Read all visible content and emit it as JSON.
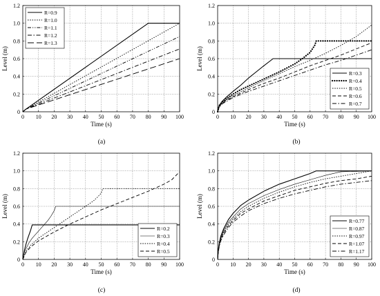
{
  "chart_data": [
    {
      "panel": "(a)",
      "type": "line",
      "xlabel": "Time (s)",
      "ylabel": "Level (m)",
      "xlim": [
        0,
        100
      ],
      "ylim": [
        0,
        1.2
      ],
      "xticks": [
        0,
        10,
        20,
        30,
        40,
        50,
        60,
        70,
        80,
        90,
        100
      ],
      "yticks": [
        0,
        0.2,
        0.4,
        0.6,
        0.8,
        1.0,
        1.2
      ],
      "grid": true,
      "legend_position": "top-left",
      "series": [
        {
          "name": "R=0.9",
          "style": "solid",
          "x": [
            0,
            2,
            80,
            100
          ],
          "y": [
            0,
            0.03,
            1.0,
            1.0
          ]
        },
        {
          "name": "R=1.0",
          "style": "dotted",
          "x": [
            0,
            2,
            100
          ],
          "y": [
            0,
            0.03,
            1.0
          ]
        },
        {
          "name": "R=1.1",
          "style": "dashdotdot",
          "x": [
            0,
            2,
            100
          ],
          "y": [
            0,
            0.03,
            0.85
          ]
        },
        {
          "name": "R=1.2",
          "style": "dashdot",
          "x": [
            0,
            2,
            100
          ],
          "y": [
            0,
            0.03,
            0.71
          ]
        },
        {
          "name": "R=1.3",
          "style": "longdash",
          "x": [
            0,
            2,
            100
          ],
          "y": [
            0,
            0.03,
            0.6
          ]
        }
      ]
    },
    {
      "panel": "(b)",
      "type": "line",
      "xlabel": "Time (s)",
      "ylabel": "Level (m)",
      "xlim": [
        0,
        100
      ],
      "ylim": [
        0,
        1.2
      ],
      "xticks": [
        0,
        10,
        20,
        30,
        40,
        50,
        60,
        70,
        80,
        90,
        100
      ],
      "yticks": [
        0,
        0.2,
        0.4,
        0.6,
        0.8,
        1.0,
        1.2
      ],
      "grid": true,
      "legend_position": "bottom-right",
      "series": [
        {
          "name": "R=0.3",
          "style": "solid",
          "x": [
            0,
            1,
            3,
            6,
            10,
            15,
            20,
            25,
            30,
            36,
            100
          ],
          "y": [
            0,
            0.07,
            0.12,
            0.17,
            0.23,
            0.3,
            0.38,
            0.45,
            0.52,
            0.6,
            0.6
          ]
        },
        {
          "name": "R=0.4",
          "style": "bold-dotted",
          "x": [
            0,
            1,
            3,
            6,
            10,
            15,
            20,
            30,
            40,
            50,
            55,
            60,
            63,
            64,
            100
          ],
          "y": [
            0,
            0.07,
            0.11,
            0.15,
            0.2,
            0.25,
            0.29,
            0.37,
            0.45,
            0.54,
            0.6,
            0.67,
            0.75,
            0.8,
            0.8
          ]
        },
        {
          "name": "R=0.5",
          "style": "dotted",
          "x": [
            0,
            1,
            3,
            6,
            10,
            20,
            30,
            40,
            50,
            60,
            70,
            80,
            90,
            100
          ],
          "y": [
            0,
            0.06,
            0.1,
            0.14,
            0.18,
            0.27,
            0.35,
            0.43,
            0.51,
            0.58,
            0.66,
            0.75,
            0.85,
            0.98
          ]
        },
        {
          "name": "R=0.6",
          "style": "dashed",
          "x": [
            0,
            1,
            3,
            6,
            10,
            20,
            30,
            40,
            50,
            60,
            70,
            80,
            90,
            100
          ],
          "y": [
            0,
            0.06,
            0.1,
            0.13,
            0.17,
            0.25,
            0.32,
            0.38,
            0.45,
            0.52,
            0.58,
            0.64,
            0.71,
            0.78
          ]
        },
        {
          "name": "R=0.7",
          "style": "dashdot",
          "x": [
            0,
            1,
            3,
            6,
            10,
            20,
            30,
            40,
            50,
            60,
            70,
            80,
            90,
            100
          ],
          "y": [
            0,
            0.05,
            0.09,
            0.12,
            0.16,
            0.23,
            0.29,
            0.35,
            0.41,
            0.47,
            0.53,
            0.58,
            0.64,
            0.7
          ]
        }
      ]
    },
    {
      "panel": "(c)",
      "type": "line",
      "xlabel": "Time (s)",
      "ylabel": "Level (m)",
      "xlim": [
        0,
        100
      ],
      "ylim": [
        0,
        1.2
      ],
      "xticks": [
        0,
        10,
        20,
        30,
        40,
        50,
        60,
        70,
        80,
        90,
        100
      ],
      "yticks": [
        0,
        0.2,
        0.4,
        0.6,
        0.8,
        1.0,
        1.2
      ],
      "grid": true,
      "legend_position": "bottom-right",
      "series": [
        {
          "name": "R=0.2",
          "style": "solid",
          "x": [
            0,
            1,
            2,
            3,
            4,
            5,
            6,
            100
          ],
          "y": [
            0,
            0.1,
            0.17,
            0.23,
            0.28,
            0.33,
            0.39,
            0.39
          ]
        },
        {
          "name": "R=0.3",
          "style": "thin-solid",
          "x": [
            0,
            1,
            2,
            4,
            6,
            8,
            10,
            12,
            14,
            16,
            18,
            20,
            21,
            100
          ],
          "y": [
            0,
            0.08,
            0.12,
            0.19,
            0.24,
            0.28,
            0.32,
            0.36,
            0.4,
            0.44,
            0.49,
            0.55,
            0.6,
            0.6
          ]
        },
        {
          "name": "R=0.4",
          "style": "dotted",
          "x": [
            0,
            2,
            5,
            10,
            15,
            20,
            25,
            30,
            35,
            40,
            45,
            48,
            50,
            51,
            100
          ],
          "y": [
            0,
            0.09,
            0.16,
            0.24,
            0.3,
            0.36,
            0.42,
            0.48,
            0.54,
            0.6,
            0.66,
            0.71,
            0.75,
            0.8,
            0.8
          ]
        },
        {
          "name": "R=0.5",
          "style": "dashed",
          "x": [
            0,
            2,
            5,
            10,
            20,
            30,
            40,
            50,
            60,
            70,
            80,
            90,
            95,
            100
          ],
          "y": [
            0,
            0.08,
            0.14,
            0.21,
            0.31,
            0.4,
            0.48,
            0.56,
            0.63,
            0.7,
            0.77,
            0.85,
            0.9,
            0.99
          ]
        }
      ]
    },
    {
      "panel": "(d)",
      "type": "line",
      "xlabel": "Time (s)",
      "ylabel": "Level (m)",
      "xlim": [
        0,
        100
      ],
      "ylim": [
        0,
        1.2
      ],
      "xticks": [
        0,
        10,
        20,
        30,
        40,
        50,
        60,
        70,
        80,
        90,
        100
      ],
      "yticks": [
        0,
        0.2,
        0.4,
        0.6,
        0.8,
        1.0,
        1.2
      ],
      "grid": true,
      "legend_position": "bottom-right",
      "series": [
        {
          "name": "R=0.77",
          "style": "solid",
          "x": [
            0,
            0.5,
            1,
            2,
            4,
            7,
            10,
            15,
            20,
            30,
            40,
            50,
            60,
            64,
            100
          ],
          "y": [
            0,
            0.12,
            0.18,
            0.26,
            0.35,
            0.45,
            0.52,
            0.61,
            0.67,
            0.77,
            0.85,
            0.91,
            0.97,
            1.0,
            1.0
          ]
        },
        {
          "name": "R=0.87",
          "style": "thin-solid",
          "x": [
            0,
            0.5,
            1,
            2,
            4,
            7,
            10,
            15,
            20,
            30,
            40,
            50,
            60,
            70,
            80,
            100
          ],
          "y": [
            0,
            0.11,
            0.17,
            0.24,
            0.33,
            0.42,
            0.48,
            0.57,
            0.63,
            0.72,
            0.79,
            0.85,
            0.9,
            0.95,
            0.99,
            1.0
          ]
        },
        {
          "name": "R=0.97",
          "style": "dotted",
          "x": [
            0,
            0.5,
            1,
            2,
            4,
            7,
            10,
            15,
            20,
            30,
            40,
            50,
            60,
            70,
            80,
            90,
            100
          ],
          "y": [
            0,
            0.1,
            0.16,
            0.23,
            0.31,
            0.4,
            0.46,
            0.54,
            0.6,
            0.69,
            0.76,
            0.82,
            0.87,
            0.91,
            0.94,
            0.97,
            1.0
          ]
        },
        {
          "name": "R=1.07",
          "style": "dashed",
          "x": [
            0,
            0.5,
            1,
            2,
            4,
            7,
            10,
            15,
            20,
            30,
            40,
            50,
            60,
            70,
            80,
            90,
            100
          ],
          "y": [
            0,
            0.1,
            0.15,
            0.22,
            0.3,
            0.38,
            0.44,
            0.52,
            0.57,
            0.66,
            0.72,
            0.78,
            0.82,
            0.86,
            0.89,
            0.91,
            0.94
          ]
        },
        {
          "name": "R=1.17",
          "style": "dashdot",
          "x": [
            0,
            0.5,
            1,
            2,
            4,
            7,
            10,
            15,
            20,
            30,
            40,
            50,
            60,
            70,
            80,
            90,
            100
          ],
          "y": [
            0,
            0.09,
            0.14,
            0.21,
            0.28,
            0.36,
            0.42,
            0.49,
            0.55,
            0.63,
            0.69,
            0.74,
            0.78,
            0.82,
            0.85,
            0.87,
            0.89
          ]
        }
      ]
    }
  ]
}
